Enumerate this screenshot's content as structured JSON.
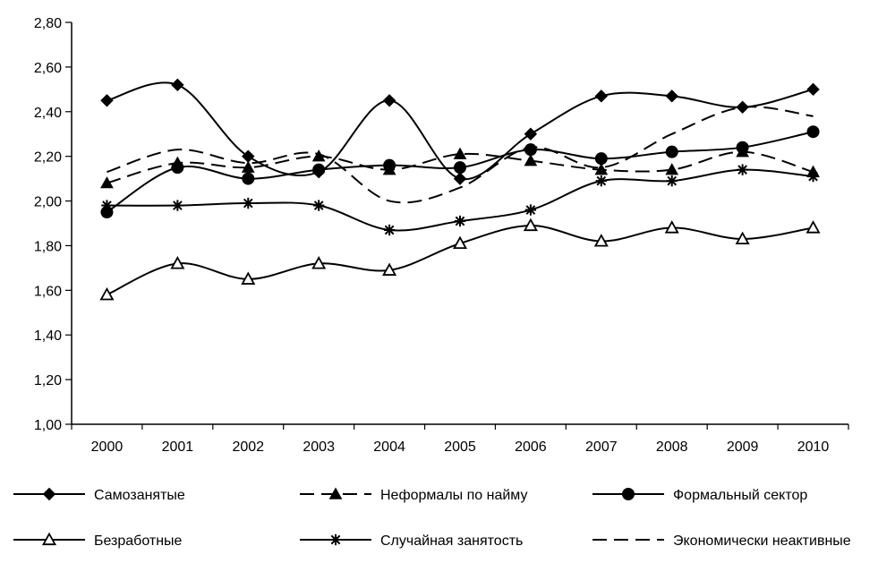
{
  "chart_data": {
    "type": "line",
    "title": "",
    "xlabel": "",
    "ylabel": "",
    "categories": [
      "2000",
      "2001",
      "2002",
      "2003",
      "2004",
      "2005",
      "2006",
      "2007",
      "2008",
      "2009",
      "2010"
    ],
    "ylim": [
      1.0,
      2.8
    ],
    "yticks": [
      "1,00",
      "1,20",
      "1,40",
      "1,60",
      "1,80",
      "2,00",
      "2,20",
      "2,40",
      "2,60",
      "2,80"
    ],
    "grid": false,
    "legend_position": "bottom",
    "series": [
      {
        "name": "Самозанятые",
        "marker": "diamond-filled",
        "dash": "solid",
        "color": "#000000",
        "values": [
          2.45,
          2.52,
          2.2,
          2.13,
          2.45,
          2.1,
          2.3,
          2.47,
          2.47,
          2.42,
          2.5
        ]
      },
      {
        "name": "Неформалы по найму",
        "marker": "triangle-filled",
        "dash": "dashed",
        "color": "#000000",
        "values": [
          2.08,
          2.17,
          2.15,
          2.2,
          2.14,
          2.21,
          2.18,
          2.14,
          2.14,
          2.22,
          2.13
        ]
      },
      {
        "name": "Формальный сектор",
        "marker": "circle-filled",
        "dash": "solid",
        "color": "#000000",
        "values": [
          1.95,
          2.15,
          2.1,
          2.14,
          2.16,
          2.15,
          2.23,
          2.19,
          2.22,
          2.24,
          2.31
        ]
      },
      {
        "name": "Безработные",
        "marker": "triangle-open",
        "dash": "solid",
        "color": "#000000",
        "values": [
          1.58,
          1.72,
          1.65,
          1.72,
          1.69,
          1.81,
          1.89,
          1.82,
          1.88,
          1.83,
          1.88
        ]
      },
      {
        "name": "Случайная занятость",
        "marker": "asterisk",
        "dash": "solid",
        "color": "#000000",
        "values": [
          1.98,
          1.98,
          1.99,
          1.98,
          1.87,
          1.91,
          1.96,
          2.09,
          2.09,
          2.14,
          2.11
        ]
      },
      {
        "name": "Экономически неактивные",
        "marker": "none",
        "dash": "dashed",
        "color": "#000000",
        "values": [
          2.13,
          2.23,
          2.17,
          2.21,
          2.0,
          2.06,
          2.24,
          2.15,
          2.3,
          2.42,
          2.38
        ]
      }
    ]
  }
}
